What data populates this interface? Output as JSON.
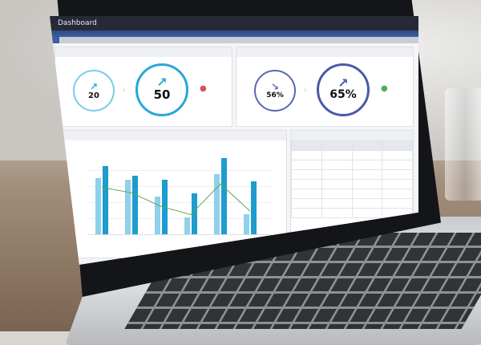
{
  "app": {
    "title": "Dashboard"
  },
  "kpi1": {
    "prev_value": "20",
    "current_value": "50",
    "color": "#2aa7d8"
  },
  "kpi2": {
    "prev_value": "56%",
    "current_value": "65%",
    "color": "#4a5aa8"
  },
  "chart": {
    "bar_light": "#8fd0ea",
    "bar_dark": "#1e9ccf",
    "line": "#5aa84a",
    "groups": [
      {
        "light": 0.82,
        "dark": 1.0
      },
      {
        "light": 0.8,
        "dark": 0.86
      },
      {
        "light": 0.55,
        "dark": 0.8
      },
      {
        "light": 0.25,
        "dark": 0.6
      },
      {
        "light": 0.88,
        "dark": 1.12
      },
      {
        "light": 0.3,
        "dark": 0.78
      }
    ],
    "line_levels": [
      0.7,
      0.62,
      0.42,
      0.3,
      0.75,
      0.35
    ]
  },
  "colors": {
    "accent": "#3d5ea0",
    "titlebar": "#262a36"
  }
}
